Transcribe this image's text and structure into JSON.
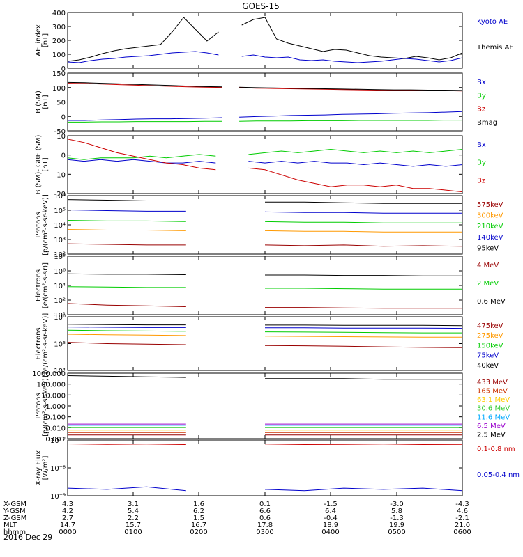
{
  "title": "GOES-15",
  "date": "2016 Dec 29",
  "chart_data": [
    {
      "type": "line",
      "ylabel": [
        "AE_index",
        "[nT]"
      ],
      "ylim": [
        0,
        400
      ],
      "yticks": [
        "400",
        "300",
        "200",
        "100",
        "0"
      ],
      "series": [
        {
          "name": "Kyoto AE",
          "color": "#0000cc",
          "values": [
            45,
            40,
            55,
            65,
            70,
            80,
            85,
            90,
            100,
            110,
            115,
            120,
            110,
            95,
            90,
            85,
            95,
            80,
            75,
            80,
            60,
            55,
            60,
            50,
            45,
            40,
            45,
            50,
            60,
            70,
            65,
            55,
            45,
            55,
            75
          ]
        },
        {
          "name": "Themis AE",
          "color": "#000000",
          "values": [
            50,
            60,
            80,
            105,
            125,
            140,
            150,
            160,
            170,
            260,
            365,
            280,
            195,
            260,
            330,
            310,
            350,
            365,
            210,
            180,
            160,
            140,
            120,
            135,
            130,
            110,
            90,
            80,
            75,
            70,
            85,
            75,
            60,
            75,
            110
          ]
        }
      ]
    },
    {
      "type": "line",
      "ylabel": [
        "B (SM)",
        "[nT]"
      ],
      "ylim": [
        -60,
        150
      ],
      "yticks": [
        "150",
        "100",
        "50",
        "0",
        "-50"
      ],
      "series": [
        {
          "name": "Bx",
          "color": "#0000cc",
          "values": [
            -22,
            -22,
            -20,
            -19,
            -17,
            -16,
            -16,
            -15,
            -14,
            -12,
            -10,
            -8,
            -6,
            -4,
            -3,
            -2,
            0,
            1,
            2,
            4,
            5,
            6,
            8,
            10
          ]
        },
        {
          "name": "By",
          "color": "#00cc00",
          "values": [
            -28,
            -28,
            -27,
            -27,
            -26,
            -26,
            -26,
            -26,
            -25,
            -25,
            -25,
            -24,
            -24,
            -24,
            -23,
            -23,
            -23,
            -22,
            -22,
            -22,
            -22,
            -22,
            -21,
            -21
          ]
        },
        {
          "name": "Bz",
          "color": "#cc0000",
          "values": [
            113,
            112,
            110,
            108,
            106,
            104,
            102,
            100,
            99,
            98,
            97,
            95,
            94,
            93,
            92,
            91,
            90,
            89,
            88,
            87,
            87,
            86,
            86,
            85
          ]
        },
        {
          "name": "Bmag",
          "color": "#000000",
          "values": [
            116,
            115,
            113,
            111,
            109,
            107,
            105,
            103,
            101,
            100,
            99,
            97,
            96,
            95,
            94,
            93,
            92,
            91,
            90,
            89,
            89,
            88,
            88,
            87
          ]
        }
      ]
    },
    {
      "type": "line",
      "ylabel": [
        "B (SM)-IGRF (SM)",
        "[nT]"
      ],
      "ylim": [
        -22,
        12
      ],
      "yticks": [
        "10",
        "0",
        "-10",
        "-20"
      ],
      "series": [
        {
          "name": "Bx",
          "color": "#0000cc",
          "values": [
            -2,
            -3,
            -2,
            -3,
            -2,
            -3,
            -4,
            -4,
            -3,
            -4,
            -5,
            -3,
            -4,
            -3,
            -4,
            -3,
            -4,
            -4,
            -5,
            -4,
            -5,
            -6,
            -5,
            -6,
            -5
          ]
        },
        {
          "name": "By",
          "color": "#00cc00",
          "values": [
            -1,
            -2,
            -1,
            -1,
            -1,
            0,
            -1,
            0,
            1,
            0,
            1,
            1,
            2,
            3,
            2,
            3,
            4,
            3,
            2,
            3,
            2,
            3,
            2,
            3,
            4
          ]
        },
        {
          "name": "Bz",
          "color": "#cc0000",
          "values": [
            10,
            8,
            5,
            2,
            0,
            -2,
            -4,
            -5,
            -7,
            -8,
            -8,
            -7,
            -8,
            -11,
            -14,
            -16,
            -18,
            -17,
            -17,
            -18,
            -17,
            -19,
            -19,
            -20,
            -21
          ]
        }
      ]
    },
    {
      "type": "line",
      "log": true,
      "ylabel": [
        "Protons",
        "[p/(cm²-s-sr-keV)]"
      ],
      "ylim": [
        1.6,
        6.1
      ],
      "yticks": [
        "10⁶",
        "10⁵",
        "10⁴",
        "10³",
        "10²"
      ],
      "series": [
        {
          "name": "575keV",
          "color": "#990000",
          "values": [
            2.4,
            2.35,
            2.3,
            2.3,
            2.25,
            2.3,
            2.25,
            2.3,
            2.2,
            2.25,
            2.2
          ]
        },
        {
          "name": "300keV",
          "color": "#ff9900",
          "values": [
            3.5,
            3.45,
            3.45,
            3.4,
            3.4,
            3.4,
            3.35,
            3.35,
            3.3,
            3.3,
            3.3
          ]
        },
        {
          "name": "210keV",
          "color": "#00cc00",
          "values": [
            4.2,
            4.15,
            4.15,
            4.1,
            4.1,
            4.1,
            4.05,
            4.05,
            4.0,
            4.0,
            4.0
          ]
        },
        {
          "name": "140keV",
          "color": "#0000cc",
          "values": [
            5.0,
            4.95,
            4.9,
            4.9,
            4.85,
            4.85,
            4.8,
            4.8,
            4.75,
            4.75,
            4.75
          ]
        },
        {
          "name": "95keV",
          "color": "#000000",
          "values": [
            5.8,
            5.75,
            5.7,
            5.7,
            5.65,
            5.6,
            5.6,
            5.55,
            5.5,
            5.5,
            5.5
          ]
        }
      ]
    },
    {
      "type": "line",
      "log": true,
      "ylabel": [
        "Electrons",
        "[e/(cm²-s-sr)]"
      ],
      "ylim": [
        0.8,
        8.1
      ],
      "yticks": [
        "10⁸",
        "10⁶",
        "10⁴",
        "10²",
        "10¹"
      ],
      "series": [
        {
          "name": "4 MeV",
          "color": "#990000",
          "values": [
            2.2,
            2.0,
            1.9,
            1.8,
            1.75,
            1.7,
            1.7,
            1.65,
            1.6,
            1.6,
            1.6
          ]
        },
        {
          "name": "2 MeV",
          "color": "#00cc00",
          "values": [
            4.3,
            4.25,
            4.2,
            4.2,
            4.15,
            4.1,
            4.1,
            4.05,
            4.0,
            4.0,
            4.0
          ]
        },
        {
          "name": "0.6 MeV",
          "color": "#000000",
          "values": [
            5.9,
            5.85,
            5.85,
            5.8,
            5.8,
            5.75,
            5.75,
            5.7,
            5.7,
            5.65,
            5.65
          ]
        }
      ]
    },
    {
      "type": "line",
      "log": true,
      "ylabel": [
        "Electrons",
        "[e/(cm²-s-sr-keV)]"
      ],
      "ylim": [
        4,
        6
      ],
      "yticks": [
        "10⁶",
        "10⁵",
        "10⁴"
      ],
      "series": [
        {
          "name": "475keV",
          "color": "#990000",
          "values": [
            5.05,
            5.0,
            4.98,
            4.96,
            4.95,
            4.93,
            4.92,
            4.9,
            4.88,
            4.86,
            4.85
          ]
        },
        {
          "name": "275keV",
          "color": "#ff9900",
          "values": [
            5.35,
            5.33,
            5.32,
            5.3,
            5.3,
            5.28,
            5.27,
            5.26,
            5.25,
            5.24,
            5.24
          ]
        },
        {
          "name": "150keV",
          "color": "#00cc00",
          "values": [
            5.5,
            5.48,
            5.47,
            5.46,
            5.45,
            5.44,
            5.43,
            5.42,
            5.41,
            5.4,
            5.4
          ]
        },
        {
          "name": "75keV",
          "color": "#0000cc",
          "values": [
            5.62,
            5.61,
            5.6,
            5.6,
            5.6,
            5.59,
            5.59,
            5.58,
            5.58,
            5.58,
            5.57
          ]
        },
        {
          "name": "40keV",
          "color": "#000000",
          "values": [
            5.72,
            5.71,
            5.7,
            5.7,
            5.7,
            5.69,
            5.69,
            5.68,
            5.68,
            5.68,
            5.67
          ]
        }
      ]
    },
    {
      "type": "line",
      "log": true,
      "ylabel": [
        "Protons",
        "[p/(cm²-s-sr-keV)]"
      ],
      "ylim": [
        -2.2,
        3.2
      ],
      "yticks": [
        "1000.000",
        "100.000",
        "10.000",
        "1.000",
        "0.100",
        "0.010",
        "0.001"
      ],
      "series": [
        {
          "name": "433 MeV",
          "color": "#990000",
          "values": [
            -1.9,
            -1.9,
            -1.9,
            -1.9,
            -1.9,
            -1.9,
            -1.9,
            -1.9,
            -1.9,
            -1.9,
            -1.9
          ]
        },
        {
          "name": "165 MeV",
          "color": "#cc3300",
          "values": [
            -1.7,
            -1.7,
            -1.7,
            -1.7,
            -1.7,
            -1.7,
            -1.7,
            -1.7,
            -1.7,
            -1.7,
            -1.7
          ]
        },
        {
          "name": "63.1 MeV",
          "color": "#ffcc00",
          "values": [
            -1.5,
            -1.5,
            -1.5,
            -1.5,
            -1.5,
            -1.5,
            -1.5,
            -1.5,
            -1.5,
            -1.5,
            -1.5
          ]
        },
        {
          "name": "30.6 MeV",
          "color": "#33cc33",
          "values": [
            -1.3,
            -1.3,
            -1.3,
            -1.3,
            -1.3,
            -1.3,
            -1.3,
            -1.3,
            -1.3,
            -1.3,
            -1.3
          ]
        },
        {
          "name": "11.6 MeV",
          "color": "#00aaff",
          "values": [
            -1.1,
            -1.1,
            -1.1,
            -1.1,
            -1.1,
            -1.1,
            -1.1,
            -1.1,
            -1.1,
            -1.1,
            -1.1
          ]
        },
        {
          "name": "6.5 MeV",
          "color": "#9900cc",
          "values": [
            -1.0,
            -1.0,
            -1.0,
            -1.0,
            -1.0,
            -1.0,
            -1.0,
            -1.0,
            -1.0,
            -1.0,
            -1.0
          ]
        },
        {
          "name": "2.5 MeV",
          "color": "#000000",
          "values": [
            3.0,
            2.95,
            2.9,
            2.85,
            2.8,
            2.75,
            2.75,
            2.75,
            2.7,
            2.7,
            2.7
          ]
        }
      ]
    },
    {
      "type": "line",
      "log": true,
      "ylabel": [
        "X-ray Flux",
        "[W/m²]"
      ],
      "ylim": [
        -9.1,
        -6.9
      ],
      "yticks": [
        "10⁻⁷",
        "10⁻⁸",
        "10⁻⁹"
      ],
      "series": [
        {
          "name": "0.1-0.8 nm",
          "color": "#cc0000",
          "values": [
            -7.05,
            -7.07,
            -7.06,
            -7.08,
            -7.07,
            -7.06,
            -7.08,
            -7.07,
            -7.06,
            -7.08,
            -7.07
          ]
        },
        {
          "name": "0.05-0.4 nm",
          "color": "#0000cc",
          "values": [
            -8.8,
            -8.85,
            -8.75,
            -8.9,
            -8.8,
            -8.85,
            -8.9,
            -8.8,
            -8.85,
            -8.8,
            -8.9
          ]
        }
      ]
    }
  ],
  "xaxis": {
    "rows": [
      {
        "label": "X-GSM",
        "values": [
          "4.3",
          "3.1",
          "1.6",
          "0.1",
          "-1.5",
          "-3.0",
          "-4.3"
        ]
      },
      {
        "label": "Y-GSM",
        "values": [
          "4.2",
          "5.4",
          "6.2",
          "6.6",
          "6.4",
          "5.8",
          "4.6"
        ]
      },
      {
        "label": "Z-GSM",
        "values": [
          "2.7",
          "2.2",
          "1.5",
          "0.6",
          "-0.4",
          "-1.3",
          "-2.1"
        ]
      },
      {
        "label": "MLT",
        "values": [
          "14.7",
          "15.7",
          "16.7",
          "17.8",
          "18.9",
          "19.9",
          "21.0"
        ]
      },
      {
        "label": "hhmm",
        "values": [
          "0000",
          "0100",
          "0200",
          "0300",
          "0400",
          "0500",
          "0600"
        ]
      }
    ]
  }
}
